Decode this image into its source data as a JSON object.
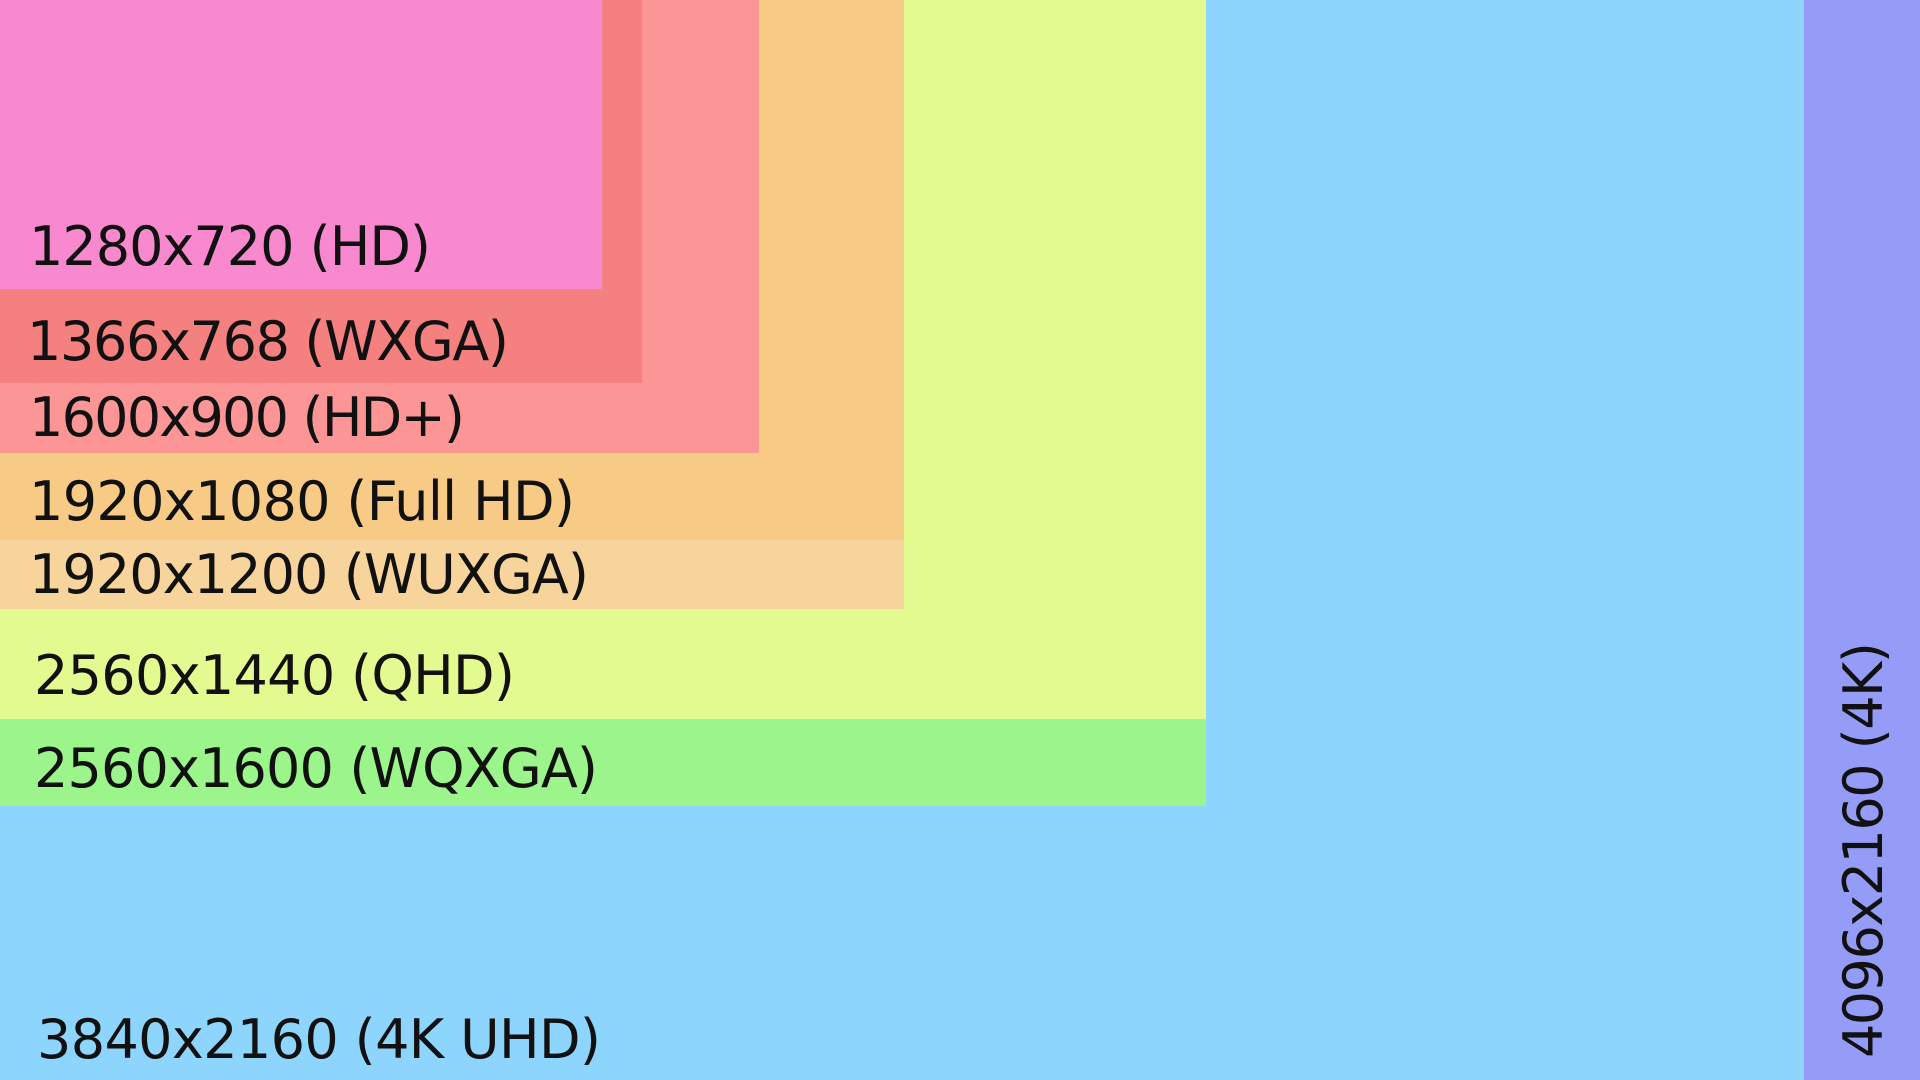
{
  "resolutions": [
    {
      "label": "4096x2160 (4K)",
      "color": "#959CF7"
    },
    {
      "label": "3840x2160 (4K UHD)",
      "color": "#8DD5FC"
    },
    {
      "label": "2560x1600 (WQXGA)",
      "color": "#9CF58A"
    },
    {
      "label": "2560x1440 (QHD)",
      "color": "#E3FA90"
    },
    {
      "label": "1920x1200 (WUXGA)",
      "color": "#F6D49B"
    },
    {
      "label": "1920x1080 (Full HD)",
      "color": "#F7CA86"
    },
    {
      "label": "1600x900 (HD+)",
      "color": "#FC9696"
    },
    {
      "label": "1366x768 (WXGA)",
      "color": "#F58080"
    },
    {
      "label": "1280x720 (HD)",
      "color": "#F889CE"
    }
  ]
}
